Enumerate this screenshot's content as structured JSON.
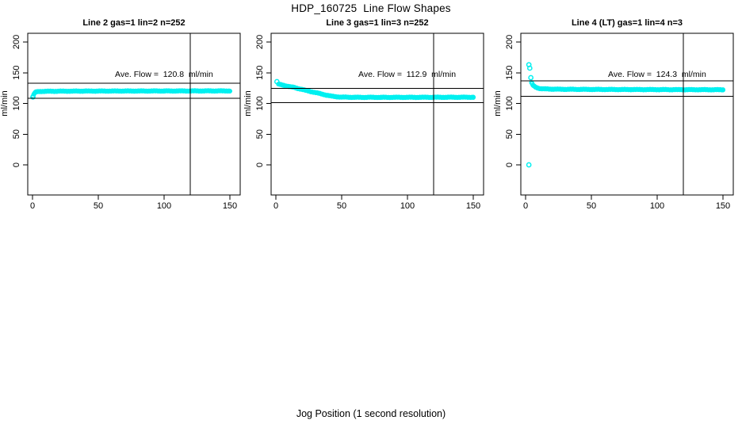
{
  "page": {
    "title": "HDP_160725  Line Flow Shapes",
    "xlabel": "Jog Position (1 second resolution)"
  },
  "chart_data": [
    {
      "type": "scatter",
      "title": "Line 2 gas=1 lin=2 n=252",
      "annotation": "Ave. Flow =  120.8  ml/min",
      "ave_flow": 120.8,
      "n": 252,
      "ylabel": "ml/min",
      "x_ticks": [
        "0",
        "50",
        "100",
        "150"
      ],
      "y_ticks": [
        "0",
        "50",
        "100",
        "150",
        "200"
      ],
      "xlim": [
        0,
        157
      ],
      "ylim": [
        0,
        200
      ],
      "marker_color": "#00f0f0",
      "ref_line_upper": 132.9,
      "ref_line_lower": 108.7,
      "vline_x": 120,
      "profile": [
        [
          0.5,
          112
        ],
        [
          1,
          114.5
        ],
        [
          1.5,
          116.5
        ],
        [
          2,
          117.8
        ],
        [
          3,
          118.8
        ],
        [
          4,
          119.2
        ],
        [
          6,
          119.5
        ],
        [
          10,
          119.7
        ],
        [
          20,
          119.9
        ],
        [
          40,
          120.1
        ],
        [
          70,
          120.2
        ],
        [
          100,
          120.3
        ],
        [
          150,
          120.4
        ]
      ],
      "outliers": [
        [
          0.3,
          110.5
        ]
      ]
    },
    {
      "type": "scatter",
      "title": "Line 3 gas=1 lin=3 n=252",
      "annotation": "Ave. Flow =  112.9  ml/min",
      "ave_flow": 112.9,
      "n": 252,
      "ylabel": "ml/min",
      "x_ticks": [
        "0",
        "50",
        "100",
        "150"
      ],
      "y_ticks": [
        "0",
        "50",
        "100",
        "150",
        "200"
      ],
      "xlim": [
        0,
        157
      ],
      "ylim": [
        0,
        200
      ],
      "marker_color": "#00f0f0",
      "ref_line_upper": 124.2,
      "ref_line_lower": 101.6,
      "vline_x": 120,
      "profile": [
        [
          2,
          131.5
        ],
        [
          3,
          131
        ],
        [
          4,
          130.3
        ],
        [
          6,
          129.3
        ],
        [
          8,
          128.4
        ],
        [
          10,
          127.6
        ],
        [
          13,
          126.4
        ],
        [
          16,
          124.8
        ],
        [
          19,
          123.2
        ],
        [
          22,
          121.6
        ],
        [
          25,
          120.1
        ],
        [
          28,
          118.6
        ],
        [
          31,
          117.2
        ],
        [
          34,
          115.8
        ],
        [
          37,
          114.2
        ],
        [
          40,
          112.8
        ],
        [
          43,
          111.6
        ],
        [
          46,
          110.8
        ],
        [
          50,
          110.3
        ],
        [
          55,
          110.1
        ],
        [
          60,
          110
        ],
        [
          80,
          109.9
        ],
        [
          120,
          110
        ],
        [
          150,
          110.1
        ]
      ],
      "outliers": [
        [
          0.8,
          135.5
        ]
      ]
    },
    {
      "type": "scatter",
      "title": "Line 4 (LT) gas=1 lin=4 n=3",
      "annotation": "Ave. Flow =  124.3  ml/min",
      "ave_flow": 124.3,
      "n": 3,
      "ylabel": "ml/min",
      "x_ticks": [
        "0",
        "50",
        "100",
        "150"
      ],
      "y_ticks": [
        "0",
        "50",
        "100",
        "150",
        "200"
      ],
      "xlim": [
        0,
        157
      ],
      "ylim": [
        0,
        200
      ],
      "marker_color": "#00f0f0",
      "ref_line_upper": 136.7,
      "ref_line_lower": 111.9,
      "vline_x": 120,
      "profile": [
        [
          4.5,
          134
        ],
        [
          5,
          132
        ],
        [
          5.5,
          130
        ],
        [
          6,
          128.8
        ],
        [
          7,
          127.2
        ],
        [
          8,
          126
        ],
        [
          9,
          125.2
        ],
        [
          10,
          124.6
        ],
        [
          12,
          124
        ],
        [
          15,
          123.6
        ],
        [
          20,
          123.3
        ],
        [
          30,
          123
        ],
        [
          50,
          122.8
        ],
        [
          80,
          122.6
        ],
        [
          120,
          122.4
        ],
        [
          150,
          122.3
        ]
      ],
      "outliers": [
        [
          2.5,
          163
        ],
        [
          3.2,
          157.5
        ],
        [
          4,
          142
        ],
        [
          2.5,
          0
        ]
      ]
    }
  ]
}
